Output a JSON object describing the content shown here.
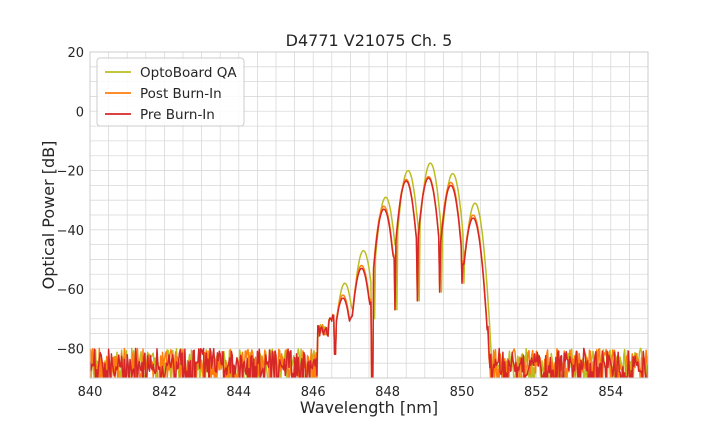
{
  "chart_data": {
    "type": "line",
    "title": "D4771 V21075 Ch. 5",
    "xlabel": "Wavelength [nm]",
    "ylabel": "Optical Power [dB]",
    "xlim": [
      840,
      855
    ],
    "ylim": [
      -90,
      20
    ],
    "xticks": [
      840,
      842,
      844,
      846,
      848,
      850,
      852,
      854
    ],
    "yticks": [
      20,
      0,
      -20,
      -40,
      -60,
      -80
    ],
    "x_minor_step": 0.5,
    "y_minor_step": 5,
    "grid": true,
    "legend_position": "top-left",
    "noise_floor_approx": -80,
    "series": [
      {
        "name": "OptoBoard QA",
        "color": "#bcbd22",
        "peaks": [
          {
            "x": 846.85,
            "y": -58,
            "w": 0.09
          },
          {
            "x": 847.35,
            "y": -47,
            "w": 0.09
          },
          {
            "x": 847.95,
            "y": -29,
            "w": 0.09
          },
          {
            "x": 848.55,
            "y": -20,
            "w": 0.09
          },
          {
            "x": 849.15,
            "y": -17.5,
            "w": 0.09
          },
          {
            "x": 849.75,
            "y": -21,
            "w": 0.09
          },
          {
            "x": 850.35,
            "y": -31,
            "w": 0.09
          }
        ]
      },
      {
        "name": "Post Burn-In",
        "color": "#ff7f0e",
        "peaks": [
          {
            "x": 846.8,
            "y": -62,
            "w": 0.09
          },
          {
            "x": 847.3,
            "y": -52,
            "w": 0.09
          },
          {
            "x": 847.9,
            "y": -32,
            "w": 0.09
          },
          {
            "x": 848.5,
            "y": -23,
            "w": 0.09
          },
          {
            "x": 849.1,
            "y": -22,
            "w": 0.09
          },
          {
            "x": 849.7,
            "y": -24,
            "w": 0.09
          },
          {
            "x": 850.3,
            "y": -35,
            "w": 0.09
          }
        ]
      },
      {
        "name": "Pre Burn-In",
        "color": "#d62728",
        "peaks": [
          {
            "x": 846.8,
            "y": -63,
            "w": 0.09
          },
          {
            "x": 847.3,
            "y": -53,
            "w": 0.09
          },
          {
            "x": 847.9,
            "y": -33,
            "w": 0.09
          },
          {
            "x": 848.5,
            "y": -23.5,
            "w": 0.09
          },
          {
            "x": 849.1,
            "y": -22.5,
            "w": 0.09
          },
          {
            "x": 849.7,
            "y": -25,
            "w": 0.09
          },
          {
            "x": 850.3,
            "y": -36,
            "w": 0.09
          }
        ]
      }
    ]
  }
}
